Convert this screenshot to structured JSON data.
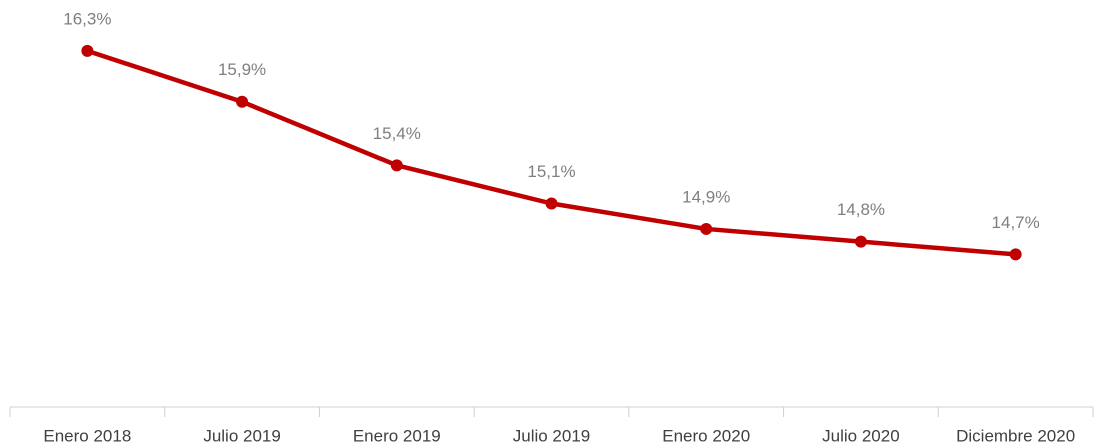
{
  "chart_data": {
    "type": "line",
    "categories": [
      "Enero 2018",
      "Julio 2019",
      "Enero 2019",
      "Julio 2019",
      "Enero 2020",
      "Julio 2020",
      "Diciembre 2020"
    ],
    "values": [
      16.3,
      15.9,
      15.4,
      15.1,
      14.9,
      14.8,
      14.7
    ],
    "value_labels": [
      "16,3%",
      "15,9%",
      "15,4%",
      "15,1%",
      "14,9%",
      "14,8%",
      "14,7%"
    ],
    "color": "#c00000",
    "ylim": [
      13.5,
      16.7
    ]
  }
}
